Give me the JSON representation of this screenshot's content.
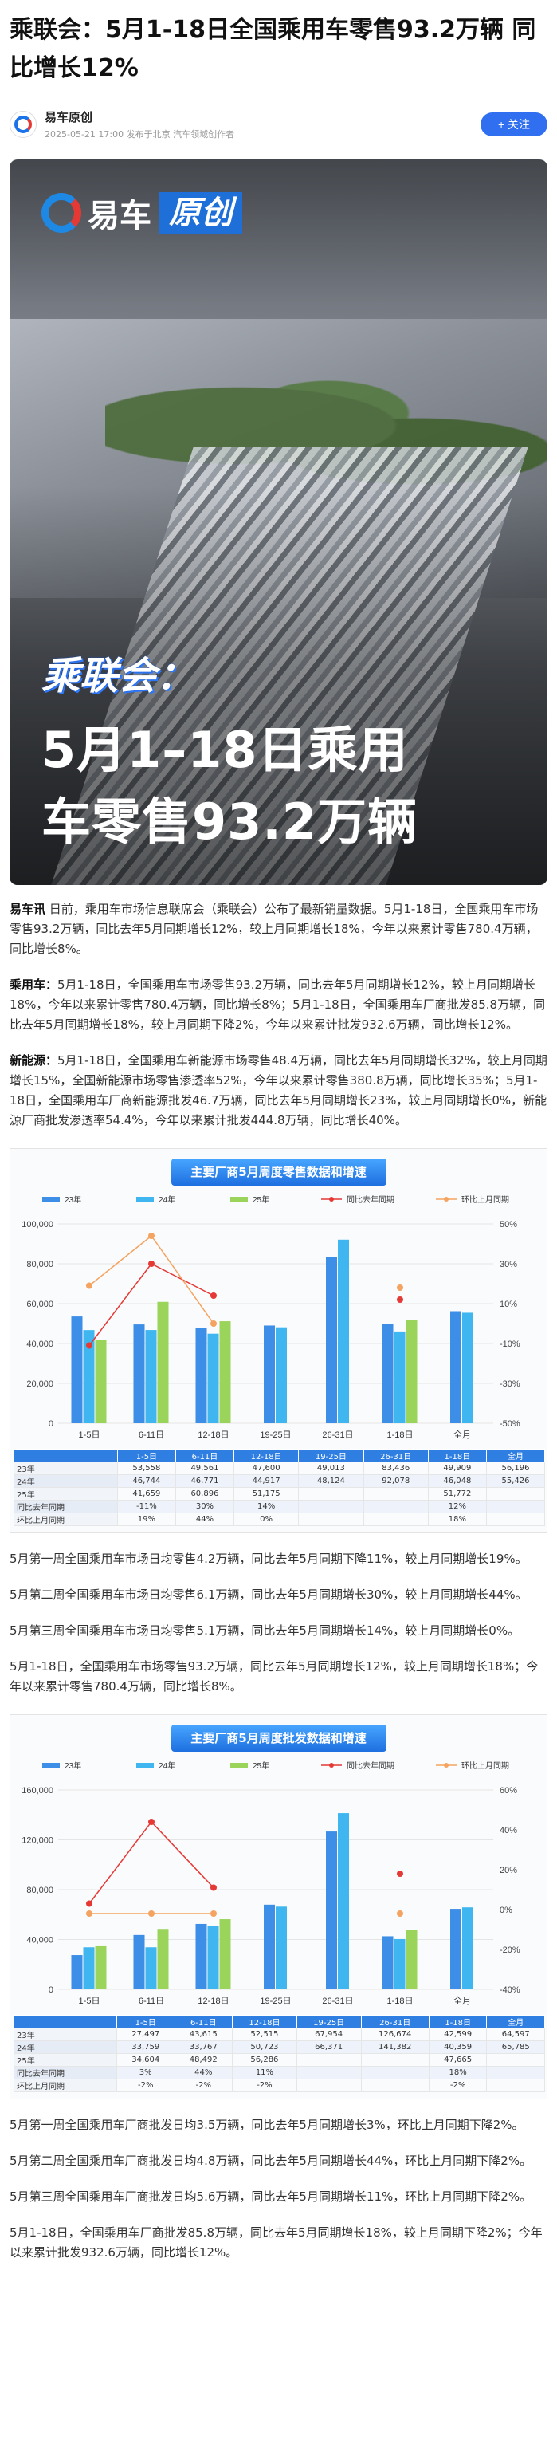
{
  "article": {
    "title": "乘联会：5月1-18日全国乘用车零售93.2万辆 同比增长12%",
    "author": "易车原创",
    "meta": "2025-05-21 17:00  发布于北京  汽车领域创作者",
    "follow": "+ 关注"
  },
  "hero": {
    "brand_name": "易车",
    "brand_tag": "原创",
    "sub": "乘联会：",
    "line1": "5月1–18日乘用",
    "line2": "车零售93.2万辆"
  },
  "paragraphs": [
    {
      "lead": "易车讯",
      "text": " 日前，乘用车市场信息联席会（乘联会）公布了最新销量数据。5月1-18日，全国乘用车市场零售93.2万辆，同比去年5月同期增长12%，较上月同期增长18%，今年以来累计零售780.4万辆，同比增长8%。"
    },
    {
      "lead": "乘用车：",
      "text": "5月1-18日，全国乘用车市场零售93.2万辆，同比去年5月同期增长12%，较上月同期增长18%，今年以来累计零售780.4万辆，同比增长8%；5月1-18日，全国乘用车厂商批发85.8万辆，同比去年5月同期增长18%，较上月同期下降2%，今年以来累计批发932.6万辆，同比增长12%。"
    },
    {
      "lead": "新能源：",
      "text": "5月1-18日，全国乘用车新能源市场零售48.4万辆，同比去年5月同期增长32%，较上月同期增长15%，全国新能源市场零售渗透率52%，今年以来累计零售380.8万辆，同比增长35%；5月1-18日，全国乘用车厂商新能源批发46.7万辆，同比去年5月同期增长23%，较上月同期增长0%，新能源厂商批发渗透率54.4%，今年以来累计批发444.8万辆，同比增长40%。"
    }
  ],
  "retail_paragraphs": [
    "5月第一周全国乘用车市场日均零售4.2万辆，同比去年5月同期下降11%，较上月同期增长19%。",
    "5月第二周全国乘用车市场日均零售6.1万辆，同比去年5月同期增长30%，较上月同期增长44%。",
    "5月第三周全国乘用车市场日均零售5.1万辆，同比去年5月同期增长14%，较上月同期增长0%。",
    "5月1-18日，全国乘用车市场零售93.2万辆，同比去年5月同期增长12%，较上月同期增长18%；今年以来累计零售780.4万辆，同比增长8%。"
  ],
  "wholesale_paragraphs": [
    "5月第一周全国乘用车厂商批发日均3.5万辆，同比去年5月同期增长3%，环比上月同期下降2%。",
    "5月第二周全国乘用车厂商批发日均4.8万辆，同比去年5月同期增长44%，环比上月同期下降2%。",
    "5月第三周全国乘用车厂商批发日均5.6万辆，同比去年5月同期增长11%，环比上月同期下降2%。",
    "5月1-18日，全国乘用车厂商批发85.8万辆，同比去年5月同期增长18%，较上月同期下降2%；今年以来累计批发932.6万辆，同比增长12%。"
  ],
  "chart_data": [
    {
      "type": "bar",
      "title": "主要厂商5月周度零售数据和增速",
      "categories": [
        "1-5日",
        "6-11日",
        "12-18日",
        "19-25日",
        "26-31日",
        "1-18日",
        "全月"
      ],
      "ylim": [
        0,
        100000
      ],
      "y_ticks": [
        "100,000",
        "80,000",
        "60,000",
        "40,000",
        "20,000",
        "0"
      ],
      "y2_ticks": [
        "50%",
        "30%",
        "10%",
        "-10%",
        "-30%",
        "-50%"
      ],
      "y2lim": [
        -50,
        50
      ],
      "series": [
        {
          "name": "23年",
          "color": "#3d8ee6",
          "values": [
            53558,
            49561,
            47600,
            49013,
            83436,
            49909,
            56196
          ]
        },
        {
          "name": "24年",
          "color": "#3fb6f0",
          "values": [
            46744,
            46771,
            44917,
            48124,
            92078,
            46048,
            55426
          ]
        },
        {
          "name": "25年",
          "color": "#9ad45a",
          "values": [
            41659,
            60896,
            51175,
            null,
            null,
            51772,
            null
          ]
        }
      ],
      "lines": [
        {
          "name": "同比去年同期",
          "color": "#e53935",
          "values": [
            -11,
            30,
            14,
            null,
            null,
            12,
            null
          ]
        },
        {
          "name": "环比上月同期",
          "color": "#f4a460",
          "values": [
            19,
            44,
            0,
            null,
            null,
            18,
            null
          ]
        }
      ],
      "table": {
        "rows": [
          {
            "label": "23年",
            "cells": [
              "53,558",
              "49,561",
              "47,600",
              "49,013",
              "83,436",
              "49,909",
              "56,196"
            ]
          },
          {
            "label": "24年",
            "cells": [
              "46,744",
              "46,771",
              "44,917",
              "48,124",
              "92,078",
              "46,048",
              "55,426"
            ]
          },
          {
            "label": "25年",
            "cells": [
              "41,659",
              "60,896",
              "51,175",
              "",
              "",
              "51,772",
              ""
            ]
          },
          {
            "label": "同比去年同期",
            "cells": [
              "-11%",
              "30%",
              "14%",
              "",
              "",
              "12%",
              ""
            ]
          },
          {
            "label": "环比上月同期",
            "cells": [
              "19%",
              "44%",
              "0%",
              "",
              "",
              "18%",
              ""
            ]
          }
        ]
      }
    },
    {
      "type": "bar",
      "title": "主要厂商5月周度批发数据和增速",
      "categories": [
        "1-5日",
        "6-11日",
        "12-18日",
        "19-25日",
        "26-31日",
        "1-18日",
        "全月"
      ],
      "ylim": [
        0,
        160000
      ],
      "y_ticks": [
        "160,000",
        "120,000",
        "80,000",
        "40,000",
        "0"
      ],
      "y2_ticks": [
        "60%",
        "40%",
        "20%",
        "0%",
        "-20%",
        "-40%"
      ],
      "y2lim": [
        -40,
        60
      ],
      "series": [
        {
          "name": "23年",
          "color": "#3d8ee6",
          "values": [
            27497,
            43615,
            52515,
            67954,
            126674,
            42599,
            64597
          ]
        },
        {
          "name": "24年",
          "color": "#3fb6f0",
          "values": [
            33759,
            33767,
            50723,
            66371,
            141382,
            40359,
            65785
          ]
        },
        {
          "name": "25年",
          "color": "#9ad45a",
          "values": [
            34604,
            48492,
            56286,
            null,
            null,
            47665,
            null
          ]
        }
      ],
      "lines": [
        {
          "name": "同比去年同期",
          "color": "#e53935",
          "values": [
            3,
            44,
            11,
            null,
            null,
            18,
            null
          ]
        },
        {
          "name": "环比上月同期",
          "color": "#f4a460",
          "values": [
            -2,
            -2,
            -2,
            null,
            null,
            -2,
            null
          ]
        }
      ],
      "table": {
        "rows": [
          {
            "label": "23年",
            "cells": [
              "27,497",
              "43,615",
              "52,515",
              "67,954",
              "126,674",
              "42,599",
              "64,597"
            ]
          },
          {
            "label": "24年",
            "cells": [
              "33,759",
              "33,767",
              "50,723",
              "66,371",
              "141,382",
              "40,359",
              "65,785"
            ]
          },
          {
            "label": "25年",
            "cells": [
              "34,604",
              "48,492",
              "56,286",
              "",
              "",
              "47,665",
              ""
            ]
          },
          {
            "label": "同比去年同期",
            "cells": [
              "3%",
              "44%",
              "11%",
              "",
              "",
              "18%",
              ""
            ]
          },
          {
            "label": "环比上月同期",
            "cells": [
              "-2%",
              "-2%",
              "-2%",
              "",
              "",
              "-2%",
              ""
            ]
          }
        ]
      }
    }
  ]
}
